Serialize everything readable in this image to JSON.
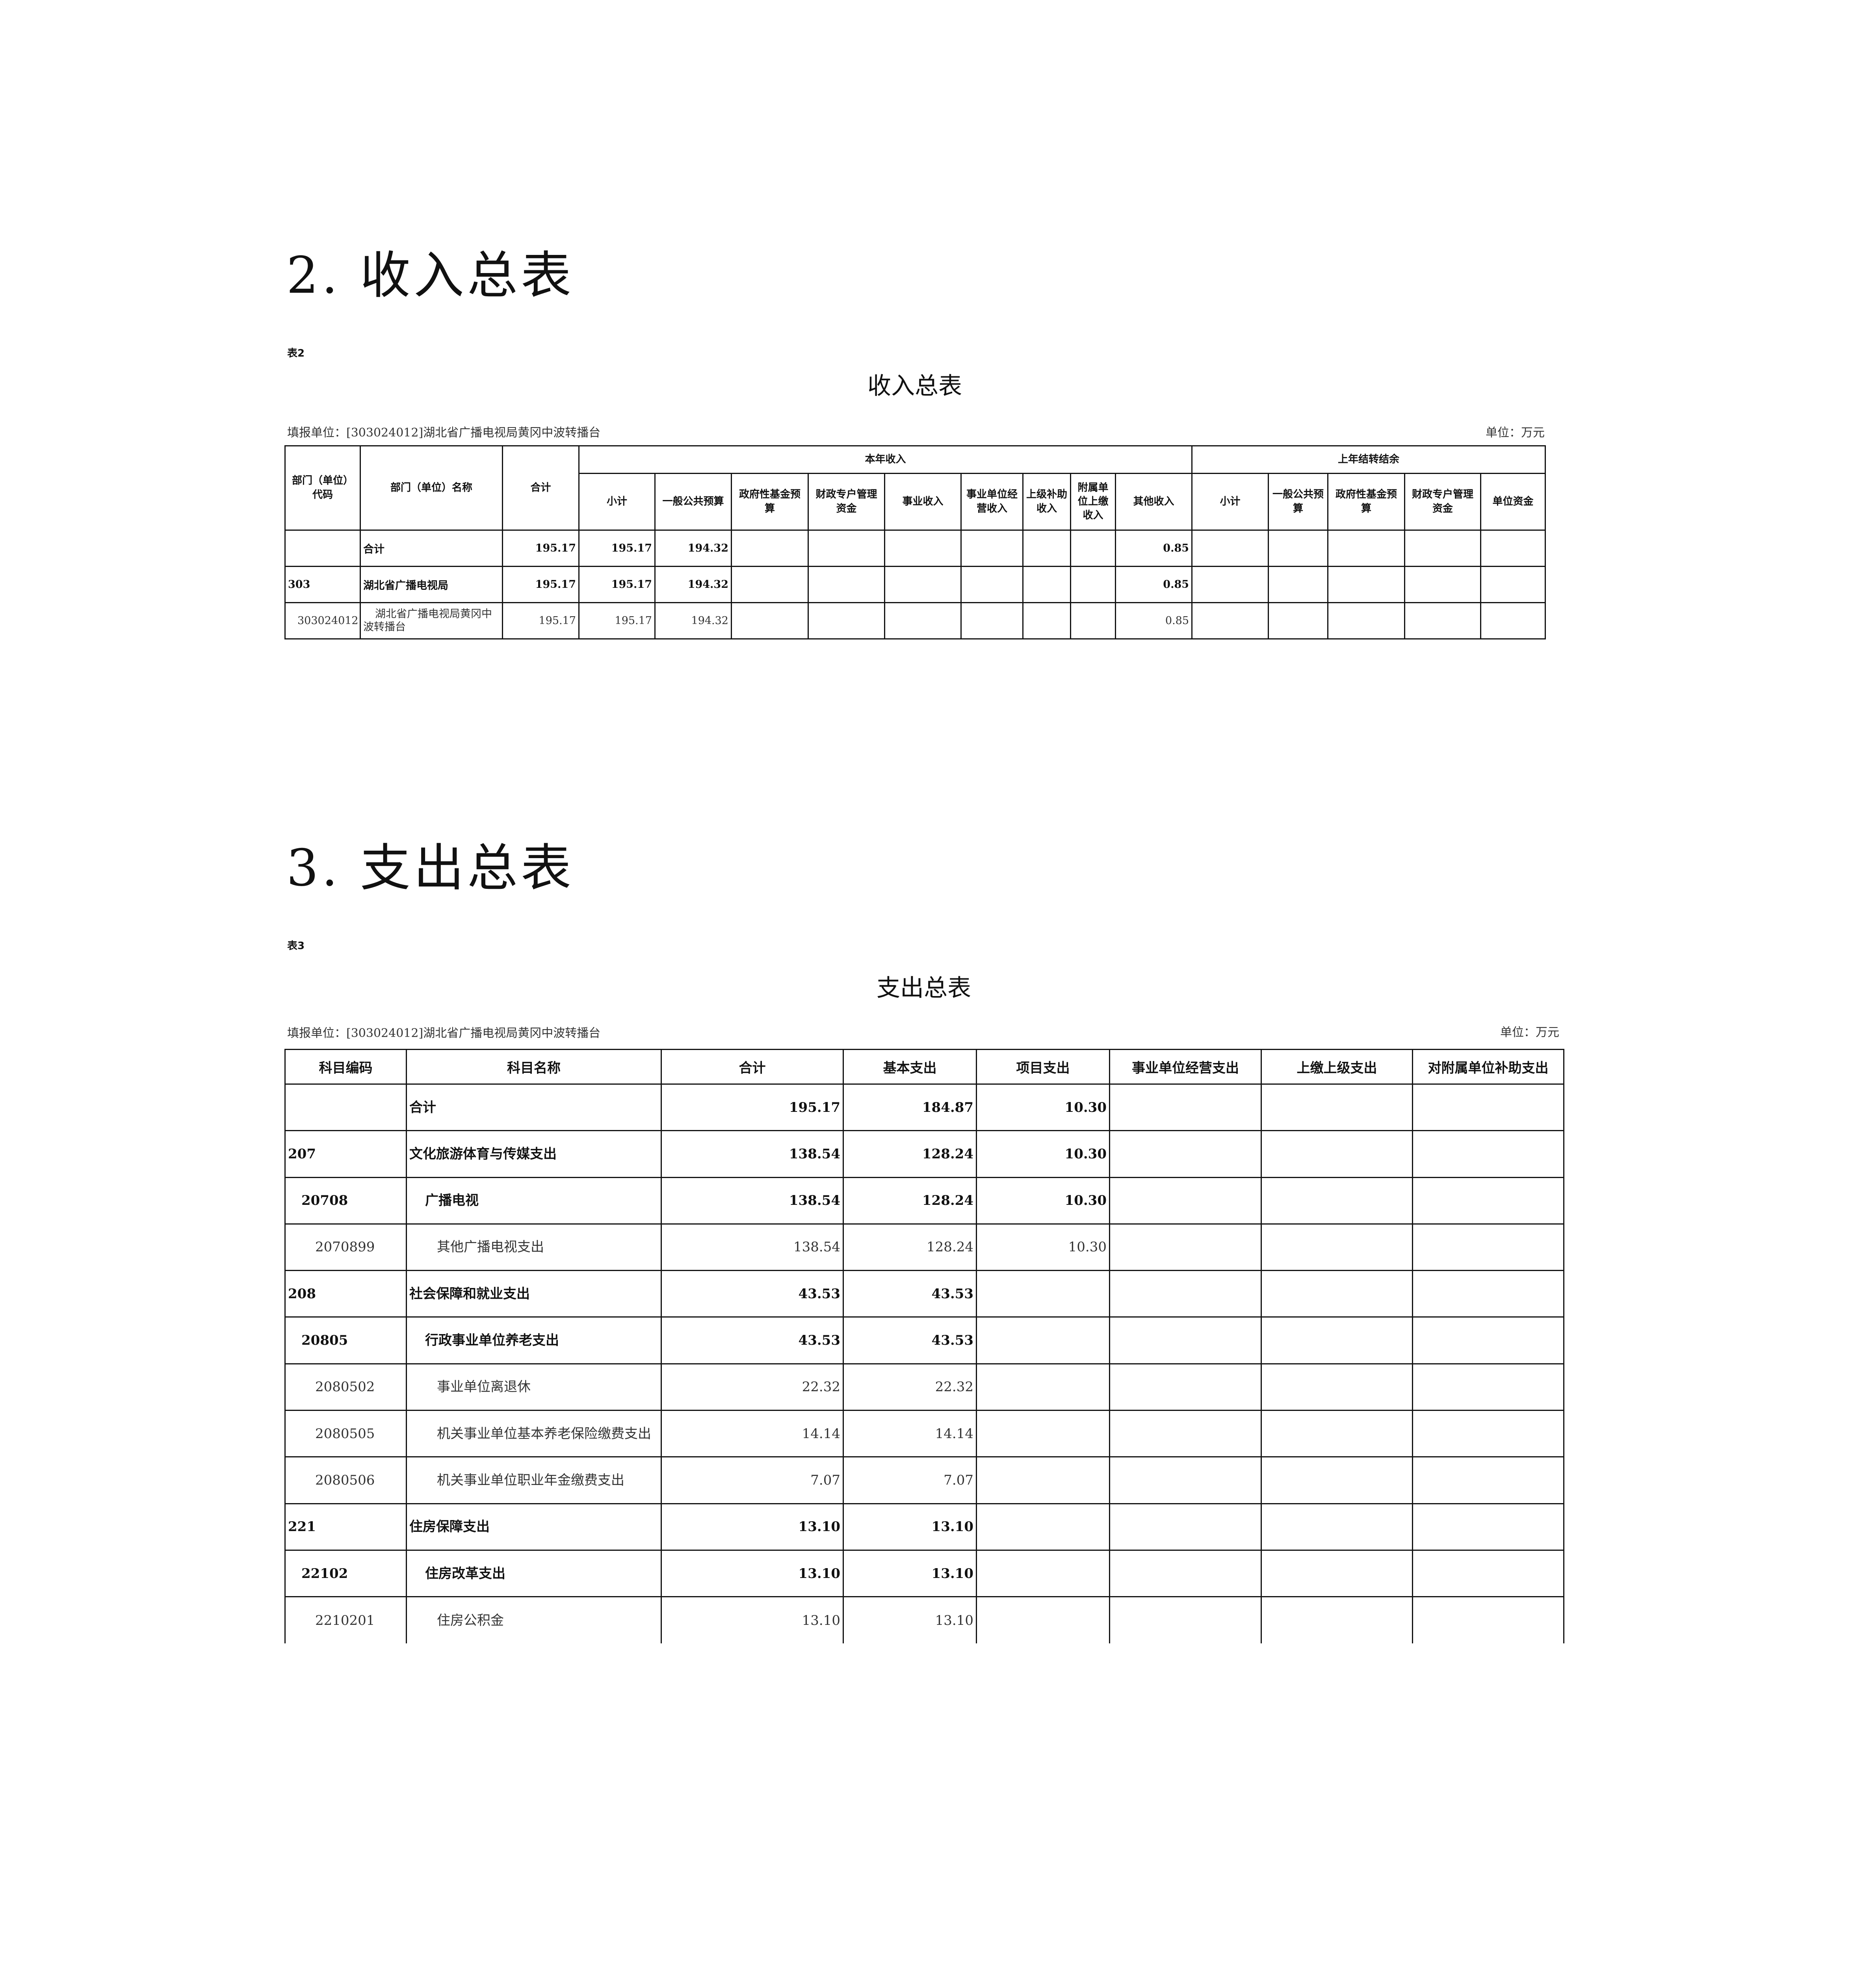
{
  "income": {
    "heading": "2. 收入总表",
    "tag": "表2",
    "title": "收入总表",
    "unit_filler": "填报单位：[303024012]湖北省广播电视局黄冈中波转播台",
    "unit_label": "单位：万元",
    "header": {
      "code": "部门（单位）代码",
      "name": "部门（单位）名称",
      "total": "合计",
      "group_current": "本年收入",
      "group_prior": "上年结转结余",
      "current_cols": [
        "小计",
        "一般公共预算",
        "政府性基金预算",
        "财政专户管理资金",
        "事业收入",
        "事业单位经营收入",
        "上级补助收入",
        "附属单位上缴收入",
        "其他收入"
      ],
      "prior_cols": [
        "小计",
        "一般公共预算",
        "政府性基金预算",
        "财政专户管理资金",
        "单位资金"
      ]
    },
    "rows": [
      {
        "level": 0,
        "code": "",
        "name": "合计",
        "values": [
          "195.17",
          "195.17",
          "194.32",
          "",
          "",
          "",
          "",
          "",
          "",
          "0.85",
          "",
          "",
          "",
          "",
          ""
        ]
      },
      {
        "level": 1,
        "code": "303",
        "name": "湖北省广播电视局",
        "values": [
          "195.17",
          "195.17",
          "194.32",
          "",
          "",
          "",
          "",
          "",
          "",
          "0.85",
          "",
          "",
          "",
          "",
          ""
        ]
      },
      {
        "level": 2,
        "code": "303024012",
        "name": "湖北省广播电视局黄冈中波转播台",
        "values": [
          "195.17",
          "195.17",
          "194.32",
          "",
          "",
          "",
          "",
          "",
          "",
          "0.85",
          "",
          "",
          "",
          "",
          ""
        ]
      }
    ]
  },
  "expense": {
    "heading": "3. 支出总表",
    "tag": "表3",
    "title": "支出总表",
    "unit_filler": "填报单位：[303024012]湖北省广播电视局黄冈中波转播台",
    "unit_label": "单位：万元",
    "columns": [
      "科目编码",
      "科目名称",
      "合计",
      "基本支出",
      "项目支出",
      "事业单位经营支出",
      "上缴上级支出",
      "对附属单位补助支出"
    ],
    "rows": [
      {
        "level": 0,
        "code": "",
        "name": "合计",
        "values": [
          "195.17",
          "184.87",
          "10.30",
          "",
          "",
          ""
        ]
      },
      {
        "level": 1,
        "code": "207",
        "name": "文化旅游体育与传媒支出",
        "values": [
          "138.54",
          "128.24",
          "10.30",
          "",
          "",
          ""
        ]
      },
      {
        "level": 2,
        "code": "20708",
        "name": "广播电视",
        "values": [
          "138.54",
          "128.24",
          "10.30",
          "",
          "",
          ""
        ]
      },
      {
        "level": 3,
        "code": "2070899",
        "name": "其他广播电视支出",
        "values": [
          "138.54",
          "128.24",
          "10.30",
          "",
          "",
          ""
        ]
      },
      {
        "level": 1,
        "code": "208",
        "name": "社会保障和就业支出",
        "values": [
          "43.53",
          "43.53",
          "",
          "",
          "",
          ""
        ]
      },
      {
        "level": 2,
        "code": "20805",
        "name": "行政事业单位养老支出",
        "values": [
          "43.53",
          "43.53",
          "",
          "",
          "",
          ""
        ]
      },
      {
        "level": 3,
        "code": "2080502",
        "name": "事业单位离退休",
        "values": [
          "22.32",
          "22.32",
          "",
          "",
          "",
          ""
        ]
      },
      {
        "level": 3,
        "code": "2080505",
        "name": "机关事业单位基本养老保险缴费支出",
        "values": [
          "14.14",
          "14.14",
          "",
          "",
          "",
          ""
        ]
      },
      {
        "level": 3,
        "code": "2080506",
        "name": "机关事业单位职业年金缴费支出",
        "values": [
          "7.07",
          "7.07",
          "",
          "",
          "",
          ""
        ]
      },
      {
        "level": 1,
        "code": "221",
        "name": "住房保障支出",
        "values": [
          "13.10",
          "13.10",
          "",
          "",
          "",
          ""
        ]
      },
      {
        "level": 2,
        "code": "22102",
        "name": "住房改革支出",
        "values": [
          "13.10",
          "13.10",
          "",
          "",
          "",
          ""
        ]
      },
      {
        "level": 3,
        "code": "2210201",
        "name": "住房公积金",
        "values": [
          "13.10",
          "13.10",
          "",
          "",
          "",
          ""
        ]
      }
    ]
  }
}
